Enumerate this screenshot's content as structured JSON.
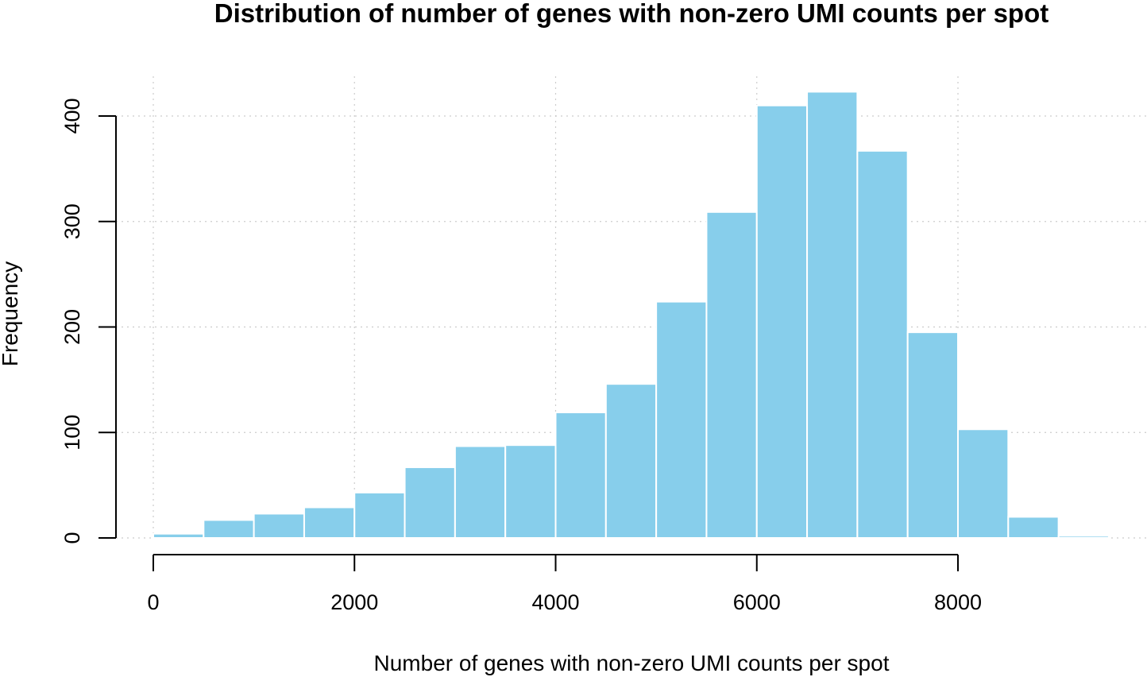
{
  "chart_data": {
    "type": "bar",
    "title": "Distribution of number of genes with non-zero UMI counts per spot",
    "xlabel": "Number of genes with non-zero UMI counts per spot",
    "ylabel": "Frequency",
    "bin_edges": [
      0,
      500,
      1000,
      1500,
      2000,
      2500,
      3000,
      3500,
      4000,
      4500,
      5000,
      5500,
      6000,
      6500,
      7000,
      7500,
      8000,
      8500,
      9000,
      9500
    ],
    "values": [
      4,
      17,
      23,
      29,
      43,
      67,
      87,
      88,
      119,
      146,
      224,
      309,
      410,
      423,
      367,
      195,
      103,
      20,
      2
    ],
    "xlim": [
      0,
      9500
    ],
    "ylim": [
      0,
      423
    ],
    "x_ticks": [
      0,
      2000,
      4000,
      6000,
      8000
    ],
    "y_ticks": [
      0,
      100,
      200,
      300,
      400
    ],
    "x_tick_labels": [
      "0",
      "2000",
      "4000",
      "6000",
      "8000"
    ],
    "y_tick_labels": [
      "0",
      "100",
      "200",
      "300",
      "400"
    ],
    "grid": true,
    "bar_color": "#87CEEB",
    "grid_color": "#cccccc"
  }
}
